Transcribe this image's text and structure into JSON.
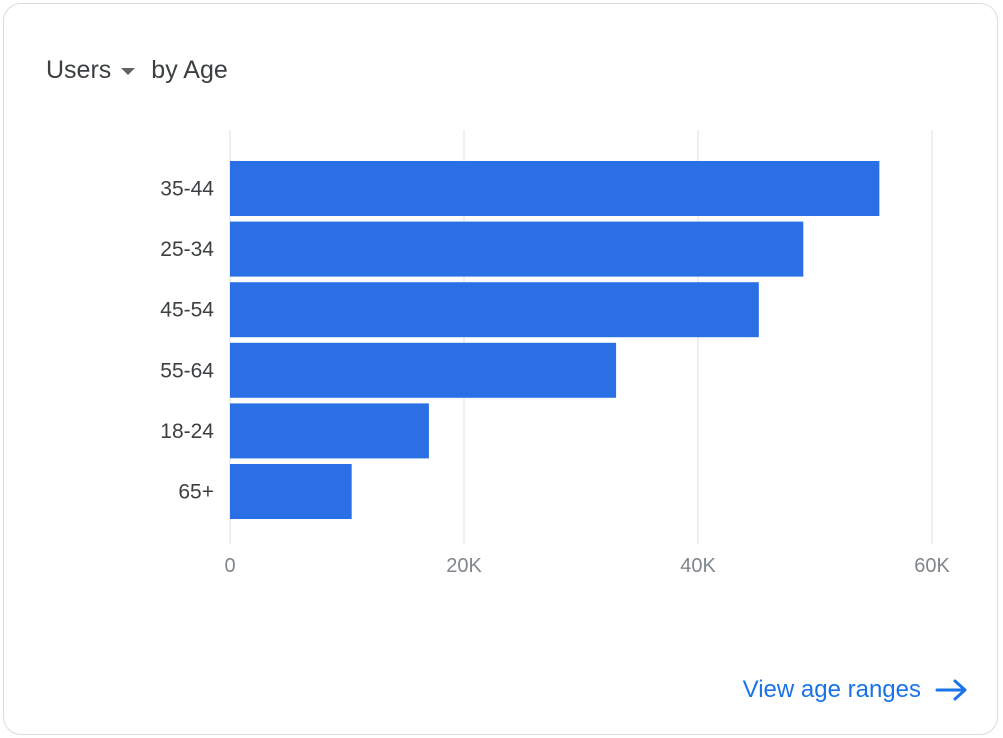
{
  "header": {
    "metric": "Users",
    "dimension": "by Age"
  },
  "footer": {
    "link_label": "View age ranges"
  },
  "colors": {
    "bar": "#2a6fe3",
    "grid": "#e8eaed",
    "tick": "#80868b",
    "category_label": "#3c4043",
    "link": "#1a73e8"
  },
  "chart_data": {
    "type": "bar",
    "orientation": "horizontal",
    "title": "",
    "xlabel": "",
    "ylabel": "",
    "categories": [
      "35-44",
      "25-34",
      "45-54",
      "55-64",
      "18-24",
      "65+"
    ],
    "values": [
      55500,
      49000,
      45200,
      33000,
      17000,
      10400
    ],
    "xlim": [
      0,
      60000
    ],
    "xticks": [
      {
        "value": 0,
        "label": "0"
      },
      {
        "value": 20000,
        "label": "20K"
      },
      {
        "value": 40000,
        "label": "40K"
      },
      {
        "value": 60000,
        "label": "60K"
      }
    ],
    "grid": true,
    "legend": "none"
  }
}
